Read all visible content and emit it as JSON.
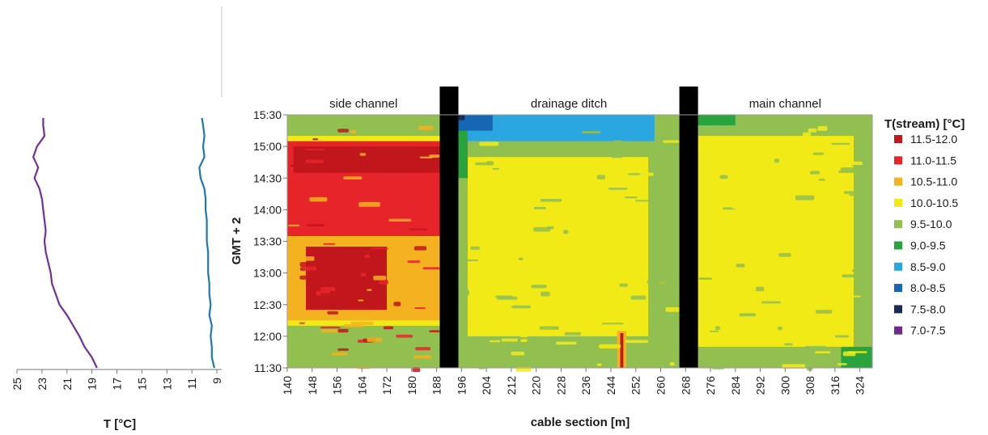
{
  "chart_data": [
    {
      "type": "line",
      "xlabel": "T [°C]",
      "xlim": [
        25,
        9
      ],
      "xticks": [
        "25",
        "23",
        "21",
        "19",
        "17",
        "15",
        "13",
        "11",
        "9"
      ],
      "time_range": [
        "11:30",
        "15:30"
      ],
      "series": [
        {
          "color": "#7030a0",
          "time": [
            "11:30",
            "11:40",
            "11:50",
            "12:00",
            "12:10",
            "12:20",
            "12:30",
            "12:40",
            "12:50",
            "13:00",
            "13:10",
            "13:20",
            "13:30",
            "13:40",
            "13:50",
            "14:00",
            "14:10",
            "14:20",
            "14:30",
            "14:40",
            "14:50",
            "15:00",
            "15:10",
            "15:20",
            "15:27"
          ],
          "values": [
            18.6,
            19.0,
            19.6,
            20.0,
            20.5,
            21.0,
            21.6,
            21.9,
            22.2,
            22.3,
            22.5,
            22.7,
            22.8,
            22.7,
            22.8,
            22.9,
            23.0,
            23.2,
            23.6,
            23.3,
            23.7,
            23.4,
            22.8,
            22.9,
            22.9
          ]
        },
        {
          "color": "#1f77b4",
          "time": [
            "11:30",
            "11:40",
            "11:50",
            "12:00",
            "12:10",
            "12:20",
            "12:30",
            "12:40",
            "12:50",
            "13:00",
            "13:10",
            "13:20",
            "13:30",
            "13:40",
            "13:50",
            "14:00",
            "14:10",
            "14:20",
            "14:30",
            "14:40",
            "14:50",
            "15:00",
            "15:10",
            "15:20",
            "15:27"
          ],
          "values": [
            9.2,
            9.4,
            9.4,
            9.5,
            9.4,
            9.6,
            9.5,
            9.6,
            9.6,
            9.7,
            9.7,
            9.7,
            9.8,
            9.8,
            9.8,
            9.9,
            9.9,
            10.0,
            10.3,
            10.4,
            10.0,
            10.1,
            10.0,
            10.1,
            10.2
          ]
        }
      ]
    },
    {
      "type": "heatmap",
      "xlabel": "cable section [m]",
      "ylabel": "GMT + 2",
      "x_ticks": [
        "140",
        "148",
        "156",
        "164",
        "172",
        "180",
        "188",
        "196",
        "204",
        "212",
        "220",
        "228",
        "236",
        "244",
        "252",
        "260",
        "268",
        "276",
        "284",
        "292",
        "300",
        "308",
        "316",
        "324"
      ],
      "y_ticks": [
        "11:30",
        "12:00",
        "12:30",
        "13:00",
        "13:30",
        "14:00",
        "14:30",
        "15:00",
        "15:30"
      ],
      "xlim": [
        140,
        328
      ],
      "sections": [
        {
          "label": "side channel",
          "from": 140,
          "to": 189
        },
        {
          "label": "drainage ditch",
          "from": 195,
          "to": 266
        },
        {
          "label": "main channel",
          "from": 272,
          "to": 328
        }
      ],
      "gaps": [
        [
          189,
          195
        ],
        [
          266,
          272
        ]
      ],
      "legend": {
        "title": "T(stream) [°C]",
        "items": [
          {
            "label": "11.5-12.0",
            "color": "#c0161c"
          },
          {
            "label": "11.0-11.5",
            "color": "#e8242b"
          },
          {
            "label": "10.5-11.0",
            "color": "#f4b120"
          },
          {
            "label": "10.0-10.5",
            "color": "#f2ea17"
          },
          {
            "label": "9.5-10.0",
            "color": "#92c050"
          },
          {
            "label": "9.0-9.5",
            "color": "#28a33d"
          },
          {
            "label": "8.5-9.0",
            "color": "#2aa6e0"
          },
          {
            "label": "8.0-8.5",
            "color": "#1567b3"
          },
          {
            "label": "7.5-8.0",
            "color": "#1a2b56"
          },
          {
            "label": "7.0-7.5",
            "color": "#6c2d8f"
          }
        ]
      },
      "zones": [
        {
          "class": "10.0-10.5",
          "x": [
            140,
            189
          ],
          "t": [
            "11:30",
            "15:30"
          ]
        },
        {
          "class": "10.5-11.0",
          "x": [
            140,
            189
          ],
          "t": [
            "12:15",
            "14:05"
          ]
        },
        {
          "class": "11.0-11.5",
          "x": [
            140,
            189
          ],
          "t": [
            "13:35",
            "15:05"
          ]
        },
        {
          "class": "11.0-11.5",
          "x": [
            140,
            152
          ],
          "t": [
            "13:35",
            "14:10"
          ]
        },
        {
          "class": "11.5-12.0",
          "x": [
            142,
            189
          ],
          "t": [
            "14:35",
            "15:00"
          ]
        },
        {
          "class": "11.5-12.0",
          "x": [
            146,
            172
          ],
          "t": [
            "12:25",
            "13:25"
          ]
        },
        {
          "class": "9.5-10.0",
          "x": [
            140,
            189
          ],
          "t": [
            "11:30",
            "12:10"
          ]
        },
        {
          "class": "9.5-10.0",
          "x": [
            140,
            189
          ],
          "t": [
            "15:10",
            "15:30"
          ]
        },
        {
          "class": "9.5-10.0",
          "x": [
            195,
            266
          ],
          "t": [
            "11:30",
            "15:30"
          ]
        },
        {
          "class": "10.0-10.5",
          "x": [
            198,
            256
          ],
          "t": [
            "12:00",
            "14:50"
          ]
        },
        {
          "class": "9.0-9.5",
          "x": [
            195,
            198
          ],
          "t": [
            "14:30",
            "15:30"
          ]
        },
        {
          "class": "8.5-9.0",
          "x": [
            198,
            258
          ],
          "t": [
            "15:05",
            "15:30"
          ]
        },
        {
          "class": "8.0-8.5",
          "x": [
            195,
            206
          ],
          "t": [
            "15:15",
            "15:30"
          ]
        },
        {
          "class": "7.5-8.0",
          "x": [
            195,
            197
          ],
          "t": [
            "15:25",
            "15:30"
          ]
        },
        {
          "class": "10.5-11.0",
          "x": [
            246,
            249
          ],
          "t": [
            "11:30",
            "12:05"
          ]
        },
        {
          "class": "11.5-12.0",
          "x": [
            247,
            248
          ],
          "t": [
            "11:30",
            "12:03"
          ]
        },
        {
          "class": "9.5-10.0",
          "x": [
            272,
            328
          ],
          "t": [
            "11:30",
            "15:30"
          ]
        },
        {
          "class": "10.0-10.5",
          "x": [
            272,
            322
          ],
          "t": [
            "11:50",
            "15:10"
          ]
        },
        {
          "class": "9.0-9.5",
          "x": [
            318,
            328
          ],
          "t": [
            "11:30",
            "11:50"
          ]
        },
        {
          "class": "9.0-9.5",
          "x": [
            272,
            284
          ],
          "t": [
            "15:20",
            "15:30"
          ]
        }
      ]
    }
  ]
}
